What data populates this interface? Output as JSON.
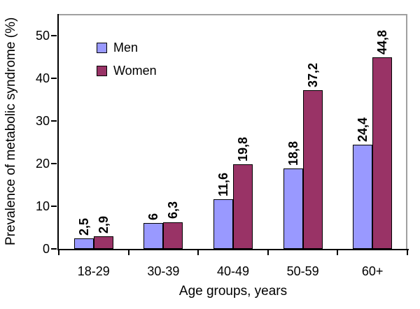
{
  "chart_data": {
    "type": "bar",
    "title": "",
    "xlabel": "Age groups, years",
    "ylabel": "Prevalence of metabolic syndrome (%)",
    "categories": [
      "18-29",
      "30-39",
      "40-49",
      "50-59",
      "60+"
    ],
    "series": [
      {
        "name": "Men",
        "color": "#9999FF",
        "values": [
          2.5,
          6,
          11.6,
          18.8,
          24.4
        ],
        "value_labels": [
          "2,5",
          "6",
          "11,6",
          "18,8",
          "24,4"
        ]
      },
      {
        "name": "Women",
        "color": "#993366",
        "values": [
          2.9,
          6.3,
          19.8,
          37.2,
          44.8
        ],
        "value_labels": [
          "2,9",
          "6,3",
          "19,8",
          "37,2",
          "44,8"
        ]
      }
    ],
    "ylim": [
      0,
      55
    ],
    "yticks": [
      0,
      10,
      20,
      30,
      40,
      50
    ],
    "grid": false,
    "legend_position": "upper-left-inside",
    "value_labels_rotated": true,
    "decimal_separator": ",",
    "bar_border_color": "#000000",
    "axis_color": "#000000",
    "frame_color": "#a0a0a0",
    "background_color": "#ffffff"
  }
}
